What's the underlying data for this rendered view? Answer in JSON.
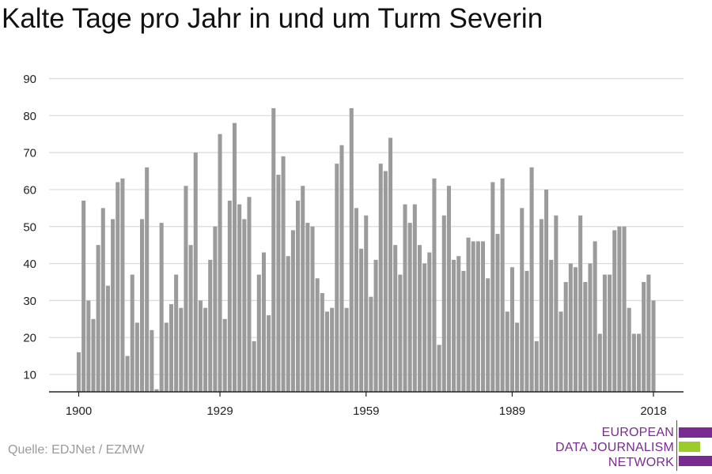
{
  "title": "Kalte Tage pro Jahr in und um Turm Severin",
  "source": "Quelle: EDJNet / EZMW",
  "logo": {
    "lines": [
      "EUROPEAN",
      "DATA JOURNALISM",
      "NETWORK"
    ],
    "colors": {
      "purple": "#7a2b91",
      "green": "#9ccc2a"
    }
  },
  "chart_data": {
    "type": "bar",
    "title": "Kalte Tage pro Jahr in und um Turm Severin",
    "xlabel": "",
    "ylabel": "",
    "x_start": 1900,
    "x_end": 2018,
    "x_ticks": [
      1900,
      1929,
      1959,
      1989,
      2018
    ],
    "y_ticks": [
      10,
      20,
      30,
      40,
      50,
      60,
      70,
      80,
      90
    ],
    "ylim": [
      5,
      90
    ],
    "grid": true,
    "bar_color": "#9b9b9b",
    "values": [
      16,
      57,
      30,
      25,
      45,
      55,
      34,
      52,
      62,
      63,
      15,
      37,
      24,
      52,
      66,
      22,
      6,
      51,
      24,
      29,
      37,
      28,
      61,
      45,
      70,
      30,
      28,
      41,
      50,
      75,
      25,
      57,
      78,
      56,
      52,
      58,
      19,
      37,
      43,
      26,
      82,
      64,
      69,
      42,
      49,
      57,
      61,
      51,
      50,
      36,
      32,
      27,
      28,
      67,
      72,
      28,
      82,
      55,
      44,
      53,
      31,
      41,
      67,
      65,
      74,
      45,
      37,
      56,
      51,
      56,
      45,
      40,
      43,
      63,
      18,
      53,
      61,
      41,
      42,
      38,
      47,
      46,
      46,
      46,
      36,
      62,
      48,
      63,
      27,
      39,
      24,
      55,
      38,
      66,
      19,
      52,
      60,
      41,
      53,
      27,
      35,
      40,
      39,
      53,
      35,
      40,
      46,
      21,
      37,
      37,
      49,
      50,
      50,
      28,
      21,
      21,
      35,
      37,
      30
    ]
  }
}
